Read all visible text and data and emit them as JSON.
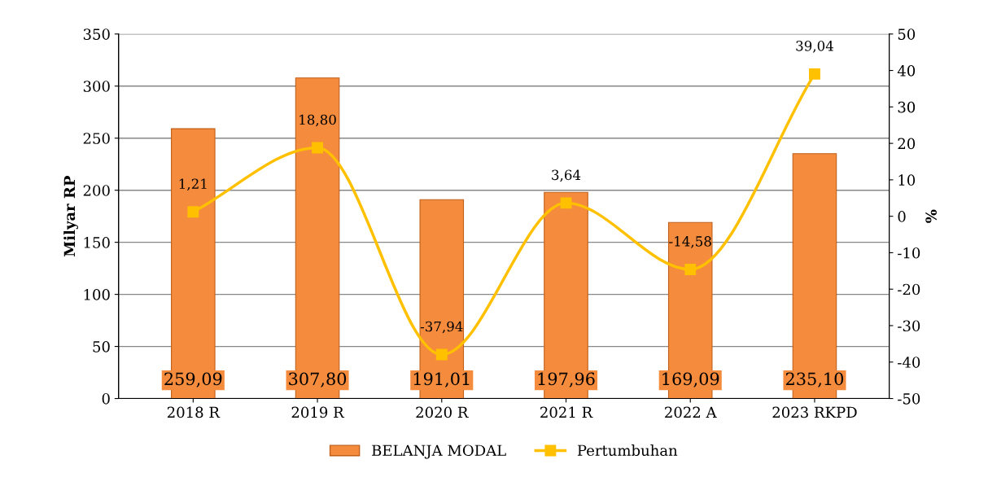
{
  "chart_data": {
    "type": "bar",
    "ylabel": "Milyar RP",
    "y2label": "%",
    "categories": [
      "2018 R",
      "2019 R",
      "2020 R",
      "2021 R",
      "2022 A",
      "2023 RKPD"
    ],
    "series": [
      {
        "name": "BELANJA MODAL",
        "color": "#f58b3c",
        "values": [
          259.09,
          307.8,
          191.01,
          197.96,
          169.09,
          235.1
        ],
        "value_labels": [
          "259,09",
          "307,80",
          "191,01",
          "197,96",
          "169,09",
          "235,10"
        ]
      },
      {
        "name": "Pertumbuhan",
        "type": "line",
        "axis": "y2",
        "color": "#ffc000",
        "marker": "square",
        "values": [
          1.21,
          18.8,
          -37.94,
          3.64,
          -14.58,
          39.04
        ],
        "value_labels": [
          "1,21",
          "18,80",
          "-37,94",
          "3,64",
          "-14,58",
          "39,04"
        ]
      }
    ],
    "ylim": [
      0,
      350
    ],
    "yticks": [
      0,
      50,
      100,
      150,
      200,
      250,
      300,
      350
    ],
    "y2lim": [
      -50,
      50
    ],
    "y2ticks": [
      -50,
      -40,
      -30,
      -20,
      -10,
      0,
      10,
      20,
      30,
      40,
      50
    ],
    "grid": "y",
    "legend": "bottom"
  }
}
